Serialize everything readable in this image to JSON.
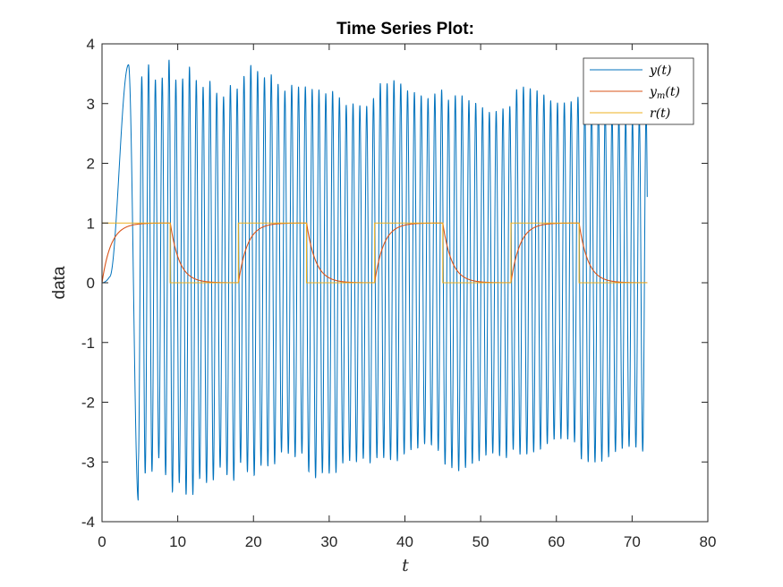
{
  "chart_data": {
    "type": "line",
    "title": "Time Series Plot:",
    "xlabel": "t",
    "ylabel": "data",
    "xlim": [
      0,
      80
    ],
    "ylim": [
      -4,
      4
    ],
    "xticks": [
      "0",
      "10",
      "20",
      "30",
      "40",
      "50",
      "60",
      "70",
      "80"
    ],
    "yticks": [
      "4",
      "3",
      "2",
      "1",
      "0",
      "-1",
      "-2",
      "-3",
      "-4"
    ],
    "grid": false,
    "legend_position": "top-right",
    "x_range": [
      0,
      72
    ],
    "series": [
      {
        "name": "y(t)",
        "color": "#0072BD",
        "description": "oscillation growing to peak ~3.65 at t≈3.5, min ~-3.65 at t≈5, then oscillating with amplitude ~3.3 early decaying to ~2.8 by t=72, period ~0.9",
        "keypoints": [
          {
            "t": 0,
            "y": 0
          },
          {
            "t": 1.0,
            "y": 0.1
          },
          {
            "t": 3.5,
            "y": 3.65
          },
          {
            "t": 4.8,
            "y": -3.65
          },
          {
            "t": 10,
            "y_amplitude": 3.4
          },
          {
            "t": 30,
            "y_amplitude": 3.1
          },
          {
            "t": 50,
            "y_amplitude": 3.0
          },
          {
            "t": 72,
            "y_amplitude": 2.85
          }
        ],
        "oscillation_period": 0.9
      },
      {
        "name": "y_m(t)",
        "label_main": "y",
        "label_sub": "m",
        "label_suffix": "(t)",
        "color": "#D95319",
        "description": "first-order response tracking r(t), time constant ~1.2",
        "time_constant": 1.2
      },
      {
        "name": "r(t)",
        "color": "#EDB120",
        "description": "square wave reference",
        "steps": [
          {
            "t_start": 0,
            "t_end": 9,
            "value": 1
          },
          {
            "t_start": 9,
            "t_end": 18,
            "value": 0
          },
          {
            "t_start": 18,
            "t_end": 27,
            "value": 1
          },
          {
            "t_start": 27,
            "t_end": 36,
            "value": 0
          },
          {
            "t_start": 36,
            "t_end": 45,
            "value": 1
          },
          {
            "t_start": 45,
            "t_end": 54,
            "value": 0
          },
          {
            "t_start": 54,
            "t_end": 63,
            "value": 1
          },
          {
            "t_start": 63,
            "t_end": 72,
            "value": 0
          }
        ]
      }
    ]
  }
}
